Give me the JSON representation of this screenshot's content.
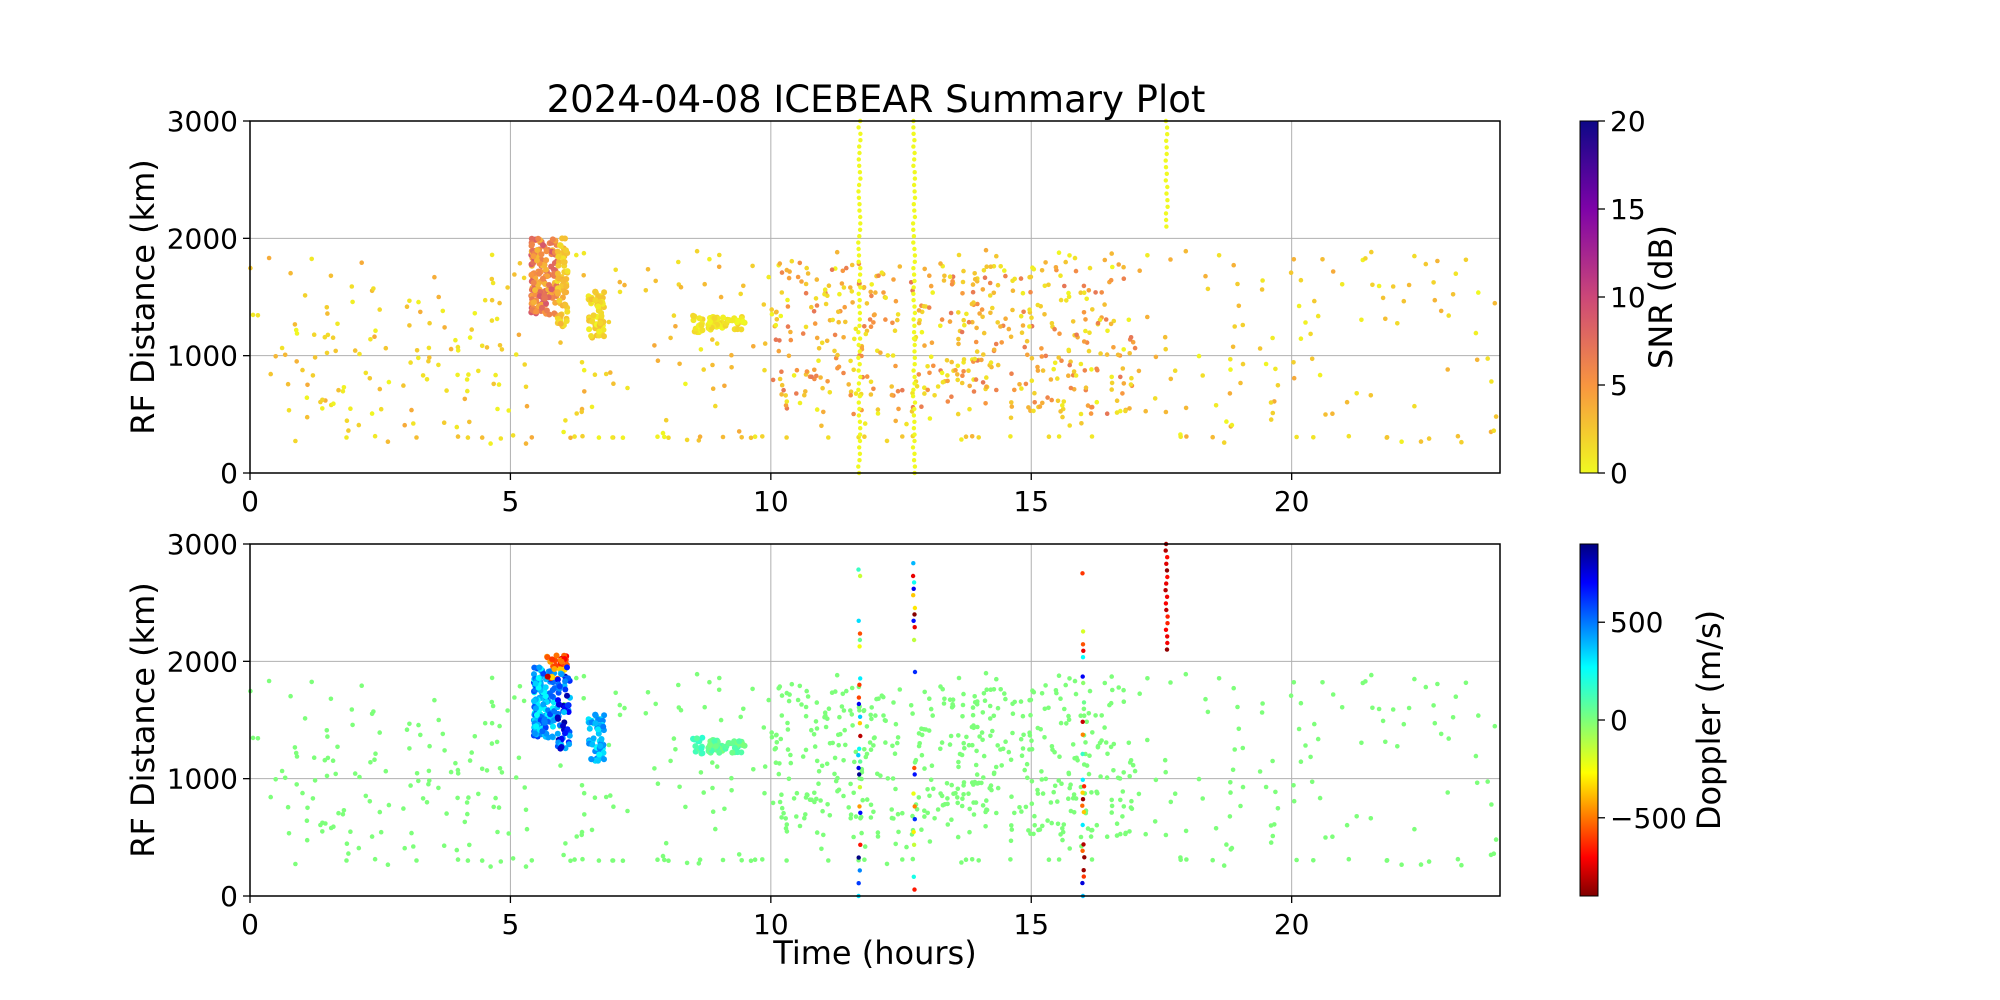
{
  "chart_data": [
    {
      "type": "scatter",
      "title": "2024-04-08 ICEBEAR Summary Plot",
      "xlabel": "",
      "ylabel": "RF Distance (km)",
      "xlim": [
        0,
        24
      ],
      "ylim": [
        0,
        3000
      ],
      "x_ticks": [
        0,
        5,
        10,
        15,
        20
      ],
      "y_ticks": [
        0,
        1000,
        2000,
        3000
      ],
      "grid": true,
      "color_variable": "SNR (dB)",
      "colorbar": {
        "label": "SNR (dB)",
        "range": [
          0,
          20
        ],
        "ticks": [
          0,
          5,
          10,
          15,
          20
        ],
        "colormap": "plasma_r"
      },
      "bands": [
        {
          "x": [
            5.4,
            5.9
          ],
          "y": [
            1350,
            2000
          ],
          "intensity": [
            3,
            9
          ],
          "n": 160
        },
        {
          "x": [
            5.9,
            6.1
          ],
          "y": [
            1250,
            2000
          ],
          "intensity": [
            1,
            4
          ],
          "n": 70
        },
        {
          "x": [
            6.5,
            6.8
          ],
          "y": [
            1150,
            1550
          ],
          "intensity": [
            0,
            3
          ],
          "n": 60
        },
        {
          "x": [
            8.5,
            8.7
          ],
          "y": [
            1200,
            1350
          ],
          "intensity": [
            0,
            2
          ],
          "n": 15
        },
        {
          "x": [
            8.8,
            9.5
          ],
          "y": [
            1220,
            1330
          ],
          "intensity": [
            0,
            2
          ],
          "n": 50
        }
      ],
      "scatter_regions": [
        {
          "x": [
            0,
            24
          ],
          "y": [
            250,
            1900
          ],
          "intensity": [
            0,
            4
          ],
          "n": 350
        },
        {
          "x": [
            10,
            17
          ],
          "y": [
            500,
            1800
          ],
          "intensity": [
            0,
            7
          ],
          "n": 420
        },
        {
          "x": [
            1,
            5
          ],
          "y": [
            400,
            1500
          ],
          "intensity": [
            0,
            3
          ],
          "n": 60
        }
      ],
      "vertical_streaks": [
        {
          "x": 11.7,
          "y_range": [
            0,
            3000
          ],
          "intensity": 0
        },
        {
          "x": 12.75,
          "y_range": [
            0,
            3000
          ],
          "intensity": 0
        },
        {
          "x": 17.6,
          "y_range": [
            2100,
            3000
          ],
          "intensity": 0
        }
      ]
    },
    {
      "type": "scatter",
      "title": "",
      "xlabel": "Time (hours)",
      "ylabel": "RF Distance (km)",
      "xlim": [
        0,
        24
      ],
      "ylim": [
        0,
        3000
      ],
      "x_ticks": [
        0,
        5,
        10,
        15,
        20
      ],
      "y_ticks": [
        0,
        1000,
        2000,
        3000
      ],
      "grid": true,
      "color_variable": "Doppler (m/s)",
      "colorbar": {
        "label": "Doppler (m/s)",
        "range": [
          -900,
          900
        ],
        "ticks": [
          -500,
          0,
          500
        ],
        "colormap": "jet"
      },
      "bands": [
        {
          "x": [
            5.45,
            5.85
          ],
          "y": [
            1350,
            1950
          ],
          "doppler": [
            250,
            600
          ],
          "n": 150
        },
        {
          "x": [
            5.7,
            6.1
          ],
          "y": [
            1850,
            2050
          ],
          "doppler": [
            -800,
            -300
          ],
          "n": 30
        },
        {
          "x": [
            5.9,
            6.15
          ],
          "y": [
            1250,
            1950
          ],
          "doppler": [
            350,
            850
          ],
          "n": 60
        },
        {
          "x": [
            6.5,
            6.8
          ],
          "y": [
            1150,
            1550
          ],
          "doppler": [
            250,
            500
          ],
          "n": 55
        },
        {
          "x": [
            8.5,
            8.7
          ],
          "y": [
            1200,
            1350
          ],
          "doppler": [
            50,
            200
          ],
          "n": 15
        },
        {
          "x": [
            8.8,
            9.5
          ],
          "y": [
            1220,
            1330
          ],
          "doppler": [
            0,
            120
          ],
          "n": 50
        }
      ],
      "scatter_regions": [
        {
          "x": [
            0,
            24
          ],
          "y": [
            250,
            1900
          ],
          "doppler": [
            0,
            0
          ],
          "n": 350
        },
        {
          "x": [
            10,
            17
          ],
          "y": [
            500,
            1800
          ],
          "doppler": [
            0,
            0
          ],
          "n": 420
        },
        {
          "x": [
            1,
            5
          ],
          "y": [
            400,
            1500
          ],
          "doppler": [
            0,
            0
          ],
          "n": 60
        }
      ],
      "vertical_streaks": [
        {
          "x": 11.7,
          "y_range": [
            0,
            3000
          ],
          "doppler": [
            -900,
            900
          ]
        },
        {
          "x": 12.75,
          "y_range": [
            0,
            3000
          ],
          "doppler": [
            -900,
            900
          ]
        },
        {
          "x": 16.0,
          "y_range": [
            0,
            2750
          ],
          "doppler": [
            -900,
            900
          ]
        },
        {
          "x": 17.6,
          "y_range": [
            2100,
            3000
          ],
          "doppler": [
            -900,
            -600
          ]
        }
      ]
    }
  ]
}
